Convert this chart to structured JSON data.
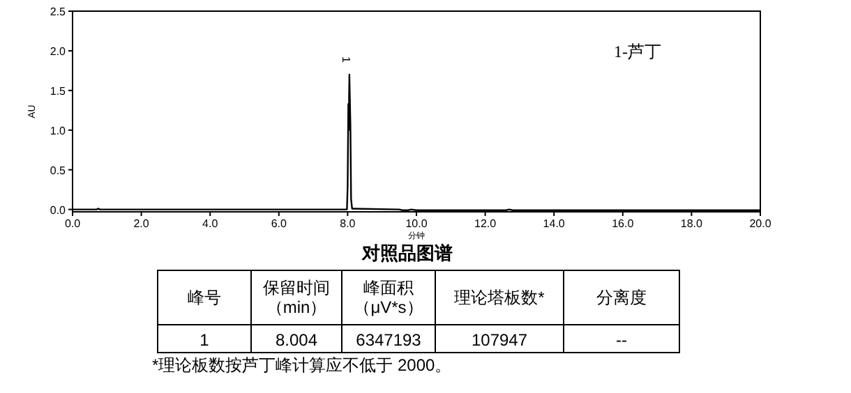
{
  "chart_data": {
    "type": "line",
    "title": "对照品图谱",
    "xlabel": "分钟",
    "ylabel": "AU",
    "x": [
      0,
      0.7,
      0.75,
      0.8,
      7.98,
      8.0,
      8.02,
      8.03,
      8.05,
      8.08,
      8.1,
      8.13,
      9.5,
      9.6,
      9.75,
      9.85,
      10.0,
      12.6,
      12.7,
      12.8,
      20
    ],
    "series": [
      {
        "color": "#000000",
        "values": [
          0,
          0,
          0.01,
          0,
          0,
          0.3,
          1.33,
          1.0,
          1.7,
          1.07,
          0.13,
          0.01,
          0,
          -0.01,
          -0.01,
          0,
          -0.01,
          -0.01,
          0,
          -0.01,
          -0.01
        ]
      }
    ],
    "xlim": [
      0,
      20
    ],
    "ylim": [
      -0.03,
      2.5
    ],
    "xticks": [
      {
        "value": 0,
        "label": "0.0"
      },
      {
        "value": 2,
        "label": "2.0"
      },
      {
        "value": 4,
        "label": "4.0"
      },
      {
        "value": 6,
        "label": "6.0"
      },
      {
        "value": 8,
        "label": "8.0"
      },
      {
        "value": 10,
        "label": "10.0"
      },
      {
        "value": 12,
        "label": "12.0"
      },
      {
        "value": 14,
        "label": "14.0"
      },
      {
        "value": 16,
        "label": "16.0"
      },
      {
        "value": 18,
        "label": "18.0"
      },
      {
        "value": 20,
        "label": "20.0"
      }
    ],
    "yticks": [
      {
        "value": 0,
        "label": "0.0"
      },
      {
        "value": 0.5,
        "label": "0.5"
      },
      {
        "value": 1,
        "label": "1.0"
      },
      {
        "value": 1.5,
        "label": "1.5"
      },
      {
        "value": 2,
        "label": "2.0"
      },
      {
        "value": 2.5,
        "label": "2.5"
      }
    ],
    "grid": false,
    "marker": "none",
    "line_style": "solid",
    "annotations": [
      {
        "text": "1",
        "x": 8.004,
        "y": 1.75
      },
      "1-芦丁",
      "峰号",
      "保留时间",
      "（min）",
      "峰面积",
      "（μV*s）",
      "理论塔板数*",
      "分离度",
      "1",
      "8.004",
      "6347193",
      "107947",
      "--",
      "*理论板数按芦丁峰计算应不低于 2000。"
    ]
  }
}
